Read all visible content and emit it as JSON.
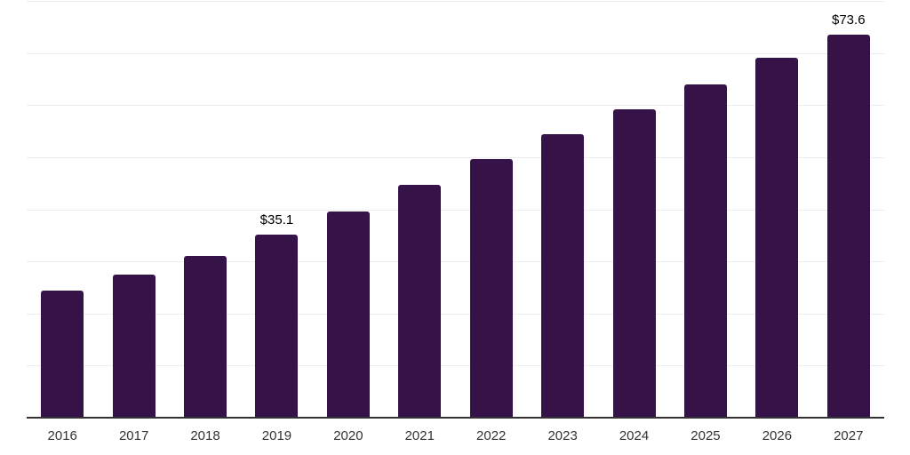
{
  "chart": {
    "background_color": "#ffffff",
    "bar_color": "#351349",
    "gridline_color": "#ececec",
    "axis_line_color": "#333333",
    "tick_label_color": "#333333",
    "data_label_color": "#000000"
  },
  "chart_data": {
    "type": "bar",
    "title": "",
    "xlabel": "",
    "ylabel": "",
    "categories": [
      "2016",
      "2017",
      "2018",
      "2019",
      "2020",
      "2021",
      "2022",
      "2023",
      "2024",
      "2025",
      "2026",
      "2027"
    ],
    "values": [
      24.4,
      27.5,
      31.0,
      35.1,
      39.6,
      44.7,
      49.7,
      54.4,
      59.2,
      64.0,
      69.1,
      73.6
    ],
    "annotations": [
      {
        "category": "2019",
        "text": "$35.1"
      },
      {
        "category": "2027",
        "text": "$73.6"
      }
    ],
    "ylim": [
      0,
      80
    ],
    "grid_step": 10,
    "grid": "horizontal",
    "y_axis_labels_visible": false,
    "legend": "none"
  }
}
